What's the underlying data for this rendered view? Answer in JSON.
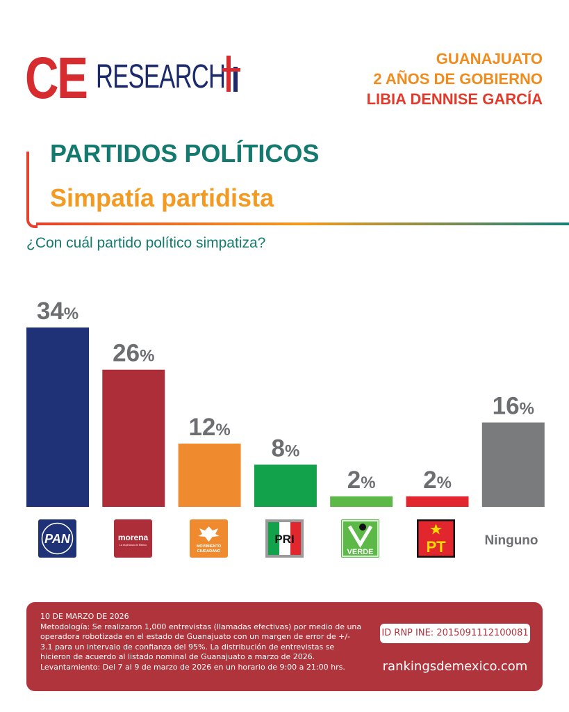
{
  "brand": {
    "logo_ce": "CE",
    "logo_research": "RESEARCH"
  },
  "header": {
    "line1": "GUANAJUATO",
    "line2": "2 AÑOS DE GOBIERNO",
    "line3": "LIBIA DENNISE GARCÍA"
  },
  "section": {
    "title": "PARTIDOS POLÍTICOS",
    "subtitle": "Simpatía partidista",
    "question": "¿Con cuál partido político simpatiza?"
  },
  "chart_data": {
    "type": "bar",
    "categories": [
      "PAN",
      "morena",
      "MOVIMIENTO CIUDADANO",
      "PRI",
      "VERDE",
      "PT",
      "Ninguno"
    ],
    "values": [
      34,
      26,
      12,
      8,
      2,
      2,
      16
    ],
    "value_labels": [
      "34%",
      "26%",
      "12%",
      "8%",
      "2%",
      "2%",
      "16%"
    ],
    "colors": [
      "#1f3277",
      "#ad2d38",
      "#f08a2e",
      "#12a24b",
      "#5cb847",
      "#e1262e",
      "#7a7b7d"
    ],
    "ylim": [
      0,
      34
    ],
    "grid": false,
    "legend": "none"
  },
  "logos": {
    "pan": "PAN",
    "morena_main": "morena",
    "morena_sub": "La esperanza de México",
    "mc_line1": "MOVIMIENTO",
    "mc_line2": "CIUDADANO",
    "pri": "PRI",
    "verde": "VERDE",
    "pt": "PT",
    "ninguno": "Ninguno"
  },
  "footer": {
    "date": "10 DE MARZO DE 2026",
    "methodology": "Metodología: Se realizaron 1,000 entrevistas (llamadas efectivas) por medio de una operadora robotizada en el estado de Guanajuato con un margen de error de +/- 3.1 para un intervalo de confianza del 95%. La distribución de entrevistas se hicieron de acuerdo al listado nominal de Guanajuato a marzo de 2026. Levantamiento: Del 7 al 9 de marzo de 2026 en un horario de 9:00 a 21:00 hrs.",
    "id_rnp": "ID RNP INE: 2015091112100081",
    "website": "rankingsdemexico.com"
  }
}
